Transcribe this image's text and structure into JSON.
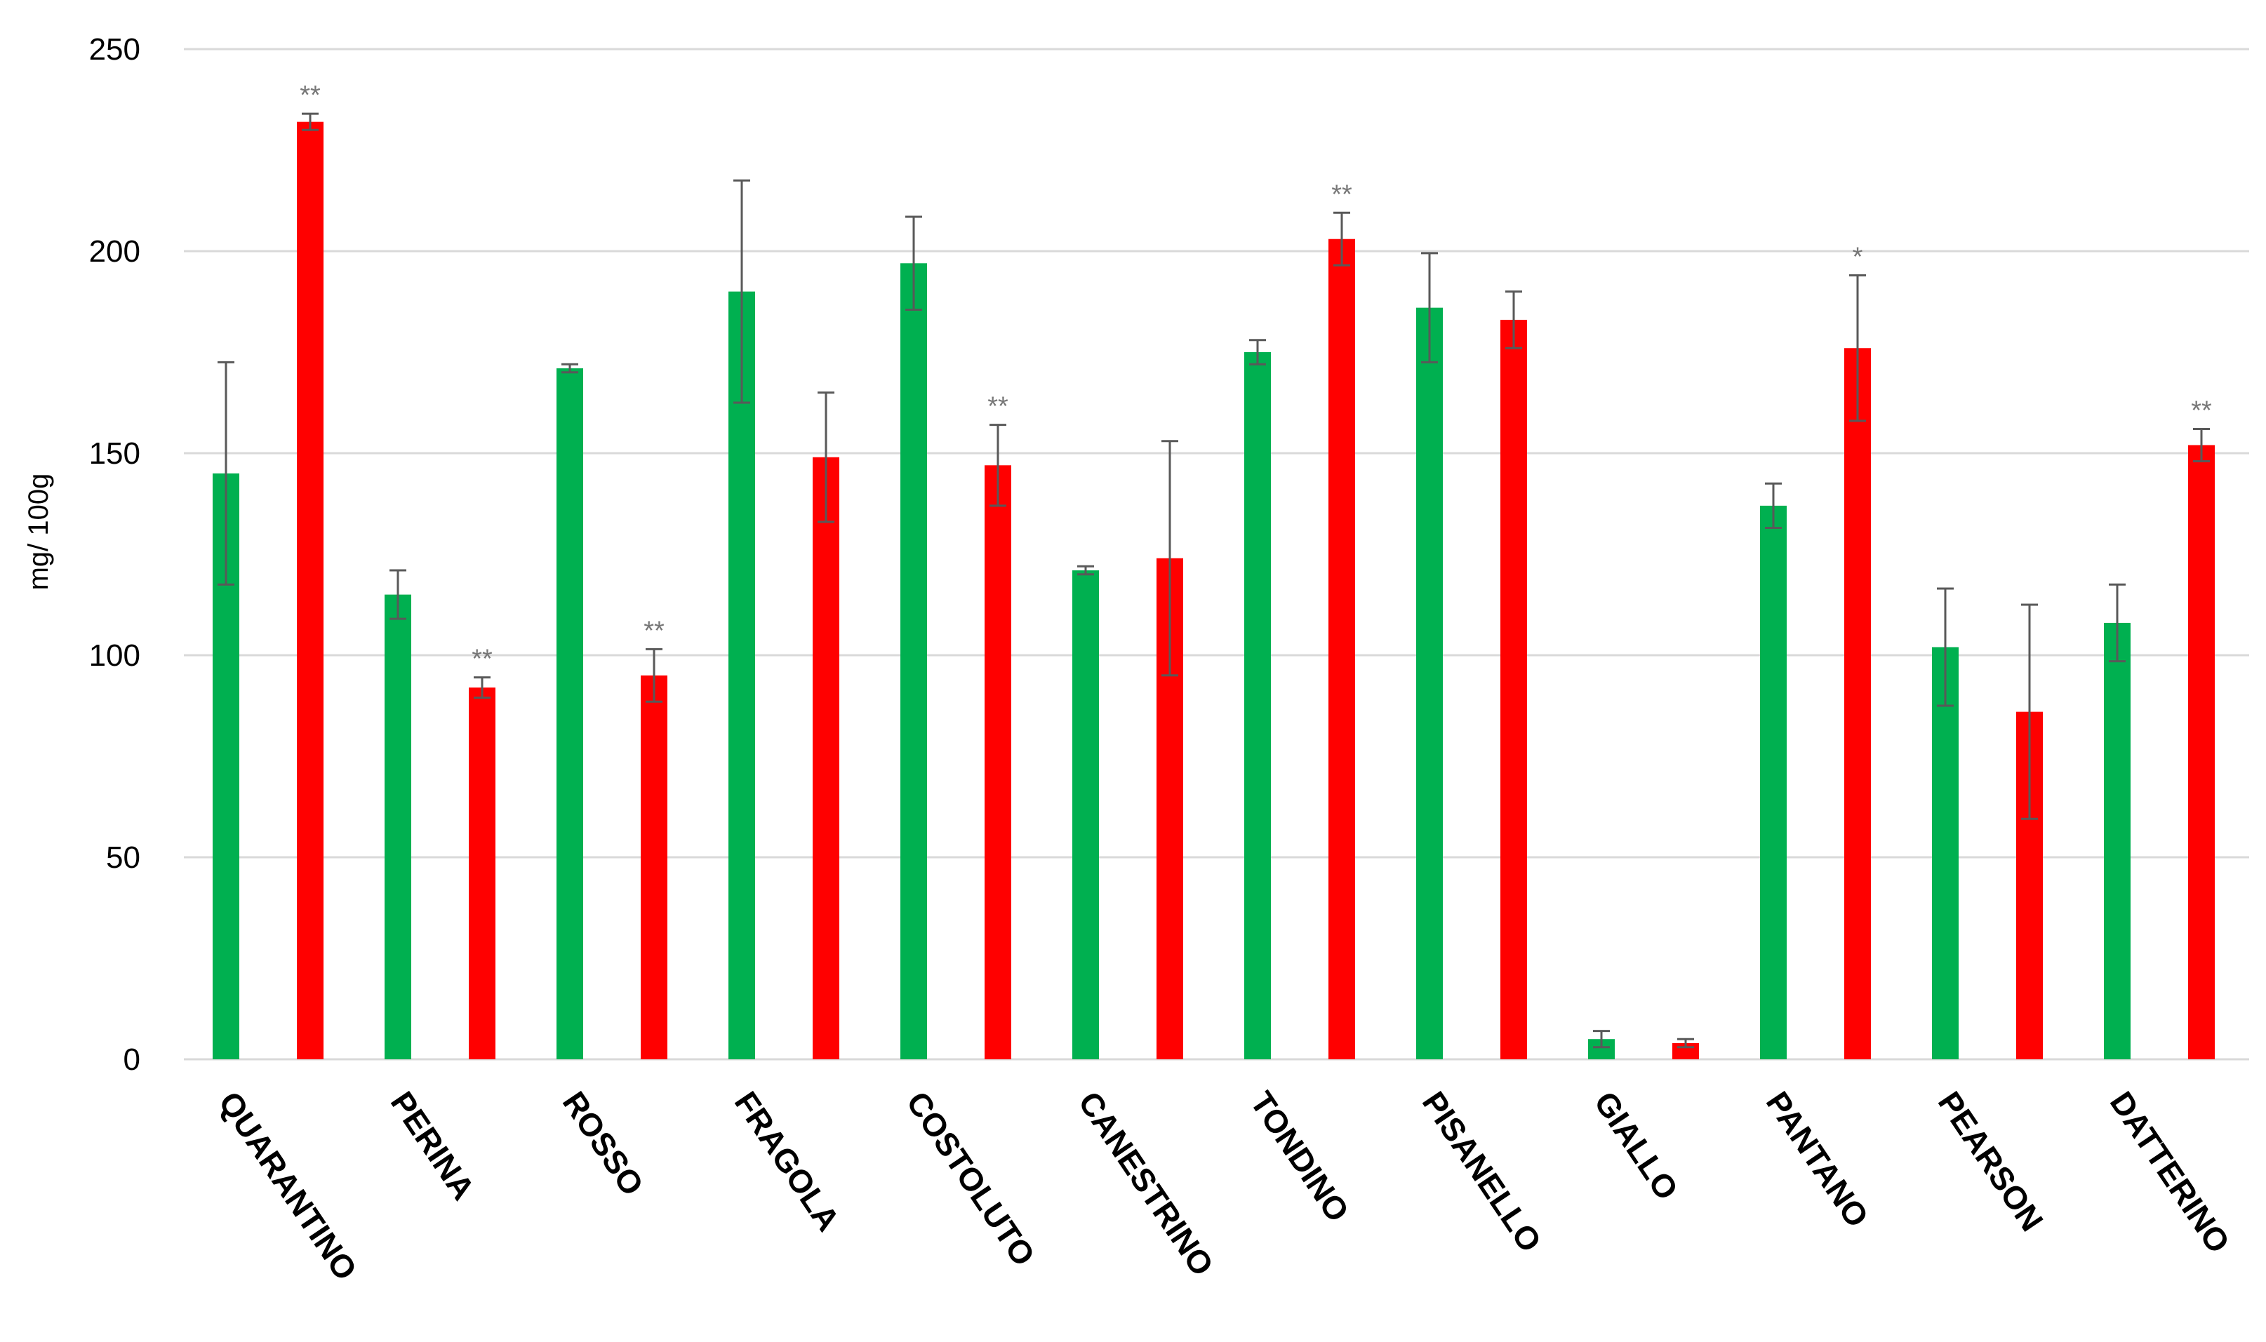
{
  "chart_data": {
    "type": "bar",
    "ylabel": "mg/ 100g",
    "ylim": [
      0,
      250
    ],
    "yticks": [
      0,
      50,
      100,
      150,
      200,
      250
    ],
    "grid": true,
    "categories": [
      "QUARANTINO",
      "PERINA",
      "ROSSO",
      "FRAGOLA",
      "COSTOLUTO",
      "CANESTRINO",
      "TONDINO",
      "PISANELLO",
      "GIALLO",
      "PANTANO",
      "PEARSON",
      "DATTERINO"
    ],
    "series": [
      {
        "color": "#00b050",
        "values": [
          145,
          115,
          171,
          190,
          197,
          121,
          175,
          186,
          5,
          137,
          102,
          108
        ],
        "errors": [
          27.5,
          6,
          1,
          27.5,
          11.5,
          1,
          3,
          13.5,
          2,
          5.5,
          14.5,
          9.5
        ],
        "significance": [
          "",
          "",
          "",
          "",
          "",
          "",
          "",
          "",
          "",
          "",
          "",
          ""
        ]
      },
      {
        "color": "#ff0000",
        "values": [
          232,
          92,
          95,
          149,
          147,
          124,
          203,
          183,
          4,
          176,
          86,
          152
        ],
        "errors": [
          2,
          2.5,
          6.5,
          16,
          10,
          29,
          6.5,
          7,
          1,
          18,
          26.5,
          4
        ],
        "significance": [
          "**",
          "**",
          "**",
          "",
          "**",
          "",
          "**",
          "",
          "",
          "*",
          "",
          "**"
        ]
      }
    ]
  }
}
